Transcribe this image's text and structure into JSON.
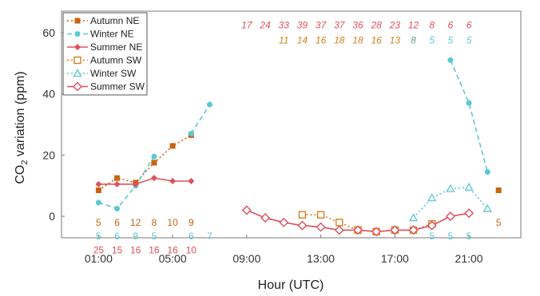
{
  "chart_data": {
    "type": "line",
    "xlabel": "Hour (UTC)",
    "ylabel_main": "CO",
    "ylabel_sub": "2",
    "ylabel_rest": " variation (ppm)",
    "xlim": [
      -1,
      23.8
    ],
    "ylim": [
      -7,
      67
    ],
    "xticks": [
      1,
      5,
      9,
      13,
      17,
      21
    ],
    "xtick_labels": [
      "01:00",
      "05:00",
      "09:00",
      "13:00",
      "17:00",
      "21:00"
    ],
    "yticks": [
      0,
      20,
      40,
      60
    ],
    "ytick_labels": [
      "0",
      "20",
      "40",
      "60"
    ],
    "legend_position": "top-left",
    "colors": {
      "orange": "#c8640f",
      "cyan": "#5bc8d4",
      "red": "#e0505c",
      "orange_light": "#d4801e"
    },
    "series": [
      {
        "name": "Autumn NE",
        "color": "#c8640f",
        "dash": "2,3",
        "marker": "square-filled",
        "x": [
          1,
          2,
          3,
          4,
          5,
          6,
          7,
          22.6
        ],
        "y": [
          8.5,
          12.5,
          11,
          17.5,
          23,
          26.5,
          null,
          8.5
        ]
      },
      {
        "name": "Winter NE",
        "color": "#5bc8d4",
        "dash": "6,4",
        "marker": "circle-filled",
        "x": [
          1,
          2,
          3,
          4,
          5,
          6,
          7,
          20,
          21,
          22
        ],
        "y": [
          4.5,
          2.5,
          10,
          19.5,
          null,
          27,
          36.5,
          51,
          37,
          14.5
        ]
      },
      {
        "name": "Summer NE",
        "color": "#e0505c",
        "dash": "",
        "marker": "diamond-filled",
        "x": [
          1,
          2,
          3,
          4,
          5,
          6
        ],
        "y": [
          10.5,
          10.5,
          10.5,
          12.5,
          11.5,
          11.5
        ]
      },
      {
        "name": "Autumn SW",
        "color": "#d4801e",
        "dash": "2,3",
        "marker": "square-open",
        "x": [
          12,
          13,
          14,
          15,
          16,
          17,
          18,
          19
        ],
        "y": [
          0.5,
          0.5,
          -2,
          -4.5,
          -5,
          -4.5,
          -4.5,
          -2.5
        ]
      },
      {
        "name": "Winter SW",
        "color": "#5bc8d4",
        "dash": "2,3",
        "marker": "triangle-open",
        "x": [
          18,
          19,
          20,
          21,
          22
        ],
        "y": [
          -0.5,
          6,
          9,
          9.5,
          2.5
        ]
      },
      {
        "name": "Summer SW",
        "color": "#e0505c",
        "dash": "",
        "marker": "diamond-open",
        "x": [
          9,
          10,
          11,
          12,
          13,
          14,
          15,
          16,
          17,
          18,
          19,
          20,
          21,
          22
        ],
        "y": [
          2,
          -0.5,
          -2,
          -3,
          -3.5,
          -4.5,
          -4.5,
          -5,
          -4.5,
          -4.5,
          -3,
          0,
          1,
          null
        ]
      }
    ],
    "count_rows": [
      {
        "series": "Summer SW",
        "color": "#e0505c",
        "italic": true,
        "y": 62.5,
        "x": [
          9,
          10,
          11,
          12,
          13,
          14,
          15,
          16,
          17,
          18,
          19,
          20,
          21
        ],
        "labels": [
          "17",
          "24",
          "33",
          "39",
          "37",
          "37",
          "36",
          "28",
          "23",
          "12",
          "8",
          "6",
          "6"
        ]
      },
      {
        "series": "Autumn SW",
        "color": "#d4801e",
        "italic": true,
        "y": 57.5,
        "x": [
          11,
          12,
          13,
          14,
          15,
          16,
          17,
          18
        ],
        "labels": [
          "11",
          "14",
          "16",
          "18",
          "18",
          "16",
          "13",
          "8"
        ]
      },
      {
        "series": "Winter SW",
        "color": "#5bc8d4",
        "italic": true,
        "y": 57.5,
        "x": [
          18,
          19,
          20,
          21
        ],
        "labels": [
          "5",
          "5",
          "5",
          "5"
        ]
      },
      {
        "series": "Autumn NE",
        "color": "#c8640f",
        "italic": false,
        "y": -2,
        "x": [
          1,
          2,
          3,
          4,
          5,
          6,
          22.6
        ],
        "labels": [
          "5",
          "6",
          "12",
          "8",
          "10",
          "9",
          "5"
        ]
      },
      {
        "series": "Winter NE",
        "color": "#5bc8d4",
        "italic": false,
        "y": -6.5,
        "x": [
          1,
          2,
          3,
          4,
          6,
          7,
          19,
          20,
          21
        ],
        "labels": [
          "5",
          "6",
          "9",
          "5",
          "6",
          "7",
          "5",
          "5",
          "5"
        ]
      },
      {
        "series": "Summer NE",
        "color": "#e0505c",
        "italic": false,
        "y": -11,
        "x": [
          1,
          2,
          3,
          4,
          5,
          6
        ],
        "labels": [
          "25",
          "15",
          "16",
          "16",
          "16",
          "10"
        ]
      }
    ]
  }
}
